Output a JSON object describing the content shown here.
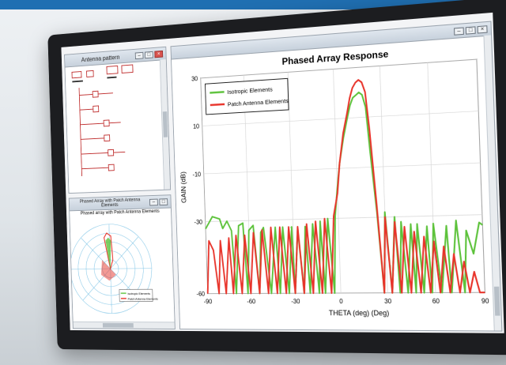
{
  "windows": {
    "antenna": {
      "title": "Antenna pattern",
      "buttons": [
        "–",
        "□",
        "×"
      ]
    },
    "polar": {
      "title": "Phased Array with Patch Antenna Elements",
      "chart_title": "Phased array with Patch Antenna Elements",
      "legend": [
        "Isotropic Elements",
        "Patch Antenna Elements"
      ]
    },
    "main": {
      "buttons": [
        "–",
        "□",
        "×"
      ]
    }
  },
  "chart_data": {
    "type": "line",
    "title": "Phased Array Response",
    "xlabel": "THETA (deg) (Deg)",
    "ylabel": "GAIN (dB)",
    "xlim": [
      -90,
      90
    ],
    "ylim": [
      -60,
      30
    ],
    "xticks": [
      -90,
      -60,
      -30,
      0,
      30,
      60,
      90
    ],
    "yticks": [
      -60,
      -30,
      -10,
      10,
      30
    ],
    "grid": true,
    "legend_position": "top-left",
    "series": [
      {
        "name": "Isotropic Elements",
        "color": "#5cc23a",
        "x": [
          -90,
          -85,
          -80,
          -78,
          -75,
          -72,
          -70,
          -67,
          -64,
          -62,
          -60,
          -57,
          -54,
          -52,
          -50,
          -46,
          -42,
          -40,
          -37,
          -34,
          -31,
          -30,
          -27,
          -24,
          -22,
          -20,
          -17,
          -14,
          -12,
          -10,
          -7,
          -4,
          -2,
          0,
          2,
          5,
          8,
          10,
          12,
          14,
          16,
          18,
          20,
          22,
          25,
          28,
          30,
          33,
          36,
          38,
          40,
          43,
          46,
          48,
          50,
          53,
          56,
          58,
          60,
          64,
          68,
          70,
          74,
          78,
          80,
          84,
          88,
          90
        ],
        "y": [
          -33,
          -28,
          -29,
          -33,
          -30,
          -34,
          -60,
          -32,
          -31,
          -60,
          -34,
          -32,
          -60,
          -35,
          -33,
          -60,
          -33,
          -60,
          -33,
          -60,
          -33,
          -60,
          -34,
          -60,
          -33,
          -60,
          -32,
          -60,
          -31,
          -60,
          -30,
          -60,
          -29,
          -18,
          -8,
          2,
          10,
          15,
          18,
          19,
          20,
          19,
          14,
          -4,
          -28,
          -60,
          -28,
          -60,
          -30,
          -60,
          -32,
          -60,
          -33,
          -60,
          -33,
          -60,
          -34,
          -60,
          -33,
          -60,
          -34,
          -60,
          -32,
          -60,
          -36,
          -45,
          -33,
          -34
        ]
      },
      {
        "name": "Patch Antenna Elements",
        "color": "#e8332a",
        "x": [
          -90,
          -88,
          -85,
          -82,
          -80,
          -77,
          -74,
          -72,
          -69,
          -66,
          -63,
          -60,
          -57,
          -54,
          -51,
          -48,
          -45,
          -42,
          -39,
          -36,
          -33,
          -30,
          -27,
          -24,
          -21,
          -18,
          -15,
          -12,
          -9,
          -6,
          -3,
          0,
          2,
          5,
          8,
          10,
          12,
          14,
          16,
          18,
          20,
          22,
          25,
          28,
          30,
          33,
          36,
          39,
          42,
          45,
          48,
          51,
          54,
          57,
          60,
          63,
          66,
          69,
          72,
          75,
          78,
          81,
          84,
          87,
          90
        ],
        "y": [
          -60,
          -38,
          -42,
          -60,
          -38,
          -60,
          -37,
          -60,
          -36,
          -60,
          -36,
          -60,
          -35,
          -60,
          -34,
          -60,
          -33,
          -60,
          -33,
          -60,
          -33,
          -60,
          -33,
          -60,
          -32,
          -60,
          -31,
          -60,
          -30,
          -60,
          -29,
          -20,
          -8,
          4,
          12,
          18,
          22,
          24,
          25,
          24,
          20,
          5,
          -25,
          -60,
          -30,
          -60,
          -32,
          -60,
          -34,
          -60,
          -36,
          -60,
          -38,
          -60,
          -40,
          -60,
          -42,
          -60,
          -45,
          -60,
          -48,
          -60,
          -52,
          -60,
          -60
        ]
      }
    ]
  }
}
